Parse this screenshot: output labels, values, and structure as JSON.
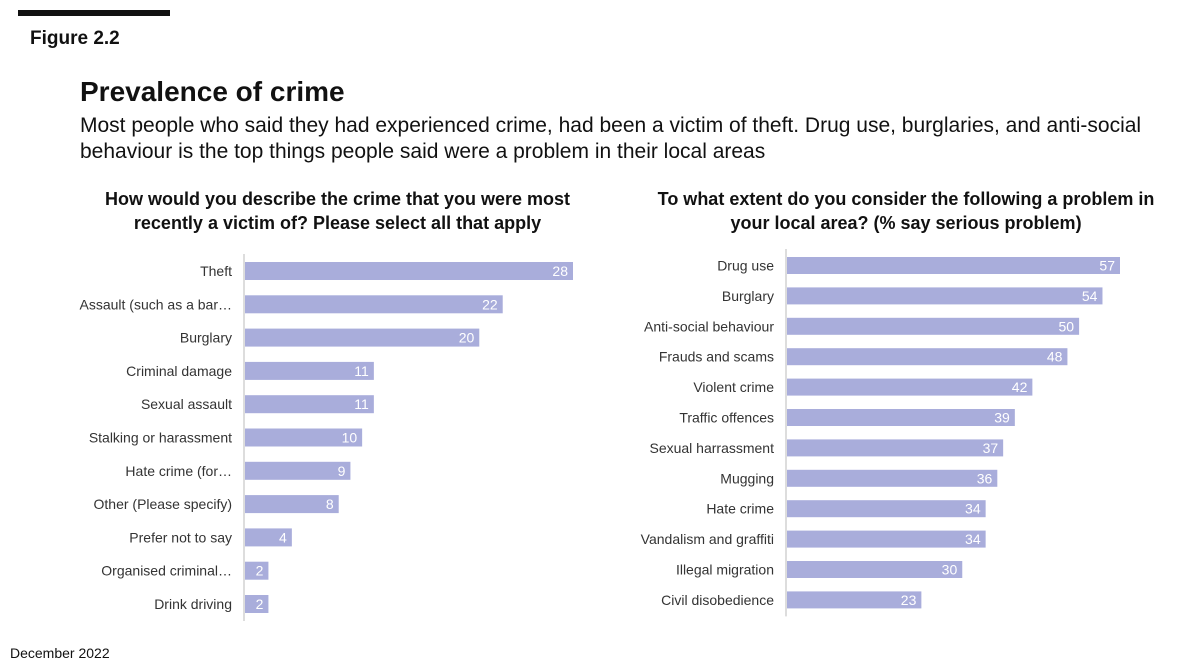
{
  "figure_label": "Figure 2.2",
  "title": "Prevalence of crime",
  "subtitle": "Most people who said they had experienced crime, had been a victim of theft. Drug use, burglaries, and anti-social behaviour is the top things people said were a problem in their local areas",
  "footer": "December 2022",
  "colors": {
    "bar": "#a9addb",
    "axis": "#bbbbbb",
    "value_text": "#ffffff"
  },
  "chart_data": [
    {
      "type": "bar",
      "orientation": "horizontal",
      "title": "How would you describe the crime that you were most recently a victim of? Please select all that apply",
      "categories": [
        "Theft",
        "Assault (such as a bar…",
        "Burglary",
        "Criminal damage",
        "Sexual assault",
        "Stalking or harassment",
        "Hate crime (for…",
        "Other (Please specify)",
        "Prefer not to say",
        "Organised criminal…",
        "Drink driving"
      ],
      "values": [
        28,
        22,
        20,
        11,
        11,
        10,
        9,
        8,
        4,
        2,
        2
      ],
      "xlim": [
        0,
        28
      ],
      "grid": false,
      "legend": "none"
    },
    {
      "type": "bar",
      "orientation": "horizontal",
      "title": "To what extent do you consider the following a problem in your local area? (% say serious problem)",
      "categories": [
        "Drug use",
        "Burglary",
        "Anti-social behaviour",
        "Frauds and scams",
        "Violent crime",
        "Traffic offences",
        "Sexual harrassment",
        "Mugging",
        "Hate crime",
        "Vandalism and graffiti",
        "Illegal migration",
        "Civil disobedience"
      ],
      "values": [
        57,
        54,
        50,
        48,
        42,
        39,
        37,
        36,
        34,
        34,
        30,
        23
      ],
      "xlim": [
        0,
        57
      ],
      "grid": false,
      "legend": "none"
    }
  ]
}
